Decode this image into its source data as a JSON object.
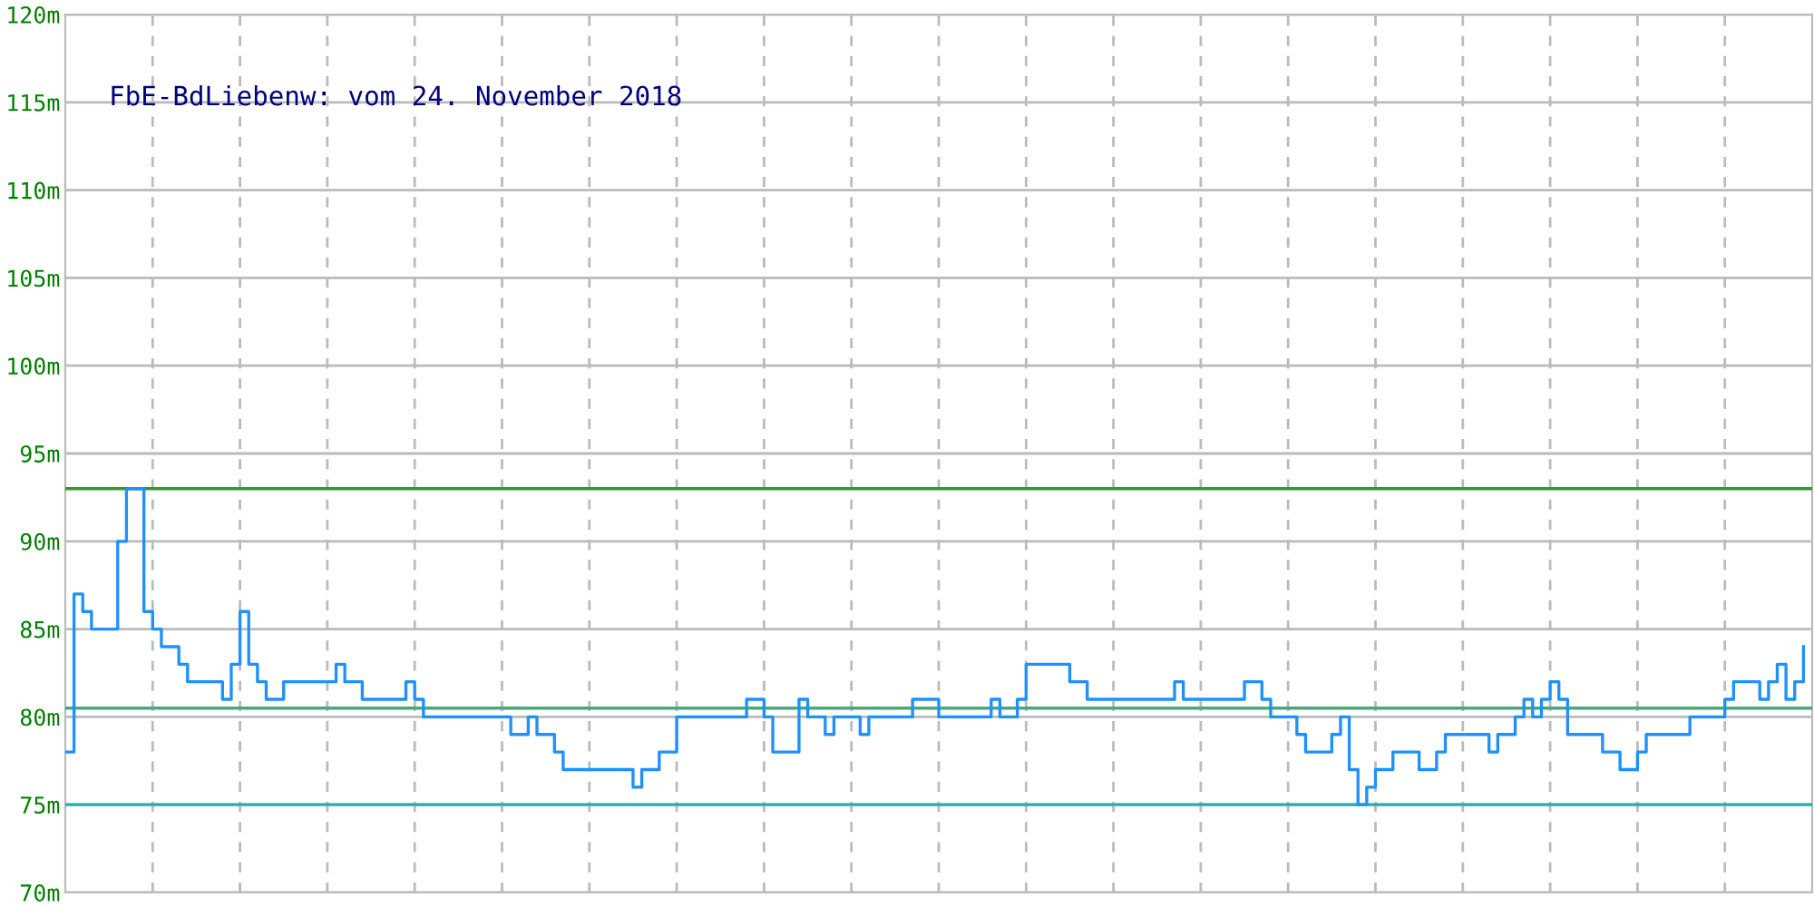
{
  "chart_data": {
    "type": "step",
    "title": "FbE-BdLiebenw: vom 24. November 2018",
    "categories": [
      null,
      null,
      null,
      null,
      null,
      null,
      null,
      null,
      null,
      null,
      null,
      null,
      null,
      null,
      null,
      null,
      null,
      null,
      null,
      null,
      null,
      null,
      null,
      null,
      null,
      null,
      null,
      null,
      null,
      null,
      null,
      null,
      null,
      null,
      null,
      null,
      null,
      null,
      null,
      null,
      null,
      null,
      null,
      null,
      null,
      null,
      null,
      null,
      null,
      null,
      null,
      null,
      null,
      null,
      null,
      null,
      null,
      null,
      null,
      null,
      null,
      null,
      null,
      null,
      null,
      null,
      null,
      null,
      null,
      null,
      null,
      null,
      null,
      null,
      null,
      null,
      null,
      null,
      null,
      null,
      null,
      null,
      null,
      null,
      null,
      null,
      null,
      null,
      null,
      null,
      null,
      null,
      null,
      null,
      null,
      null,
      null,
      null,
      null,
      null,
      null,
      null,
      null,
      null,
      null,
      null,
      null,
      null,
      null,
      null,
      null,
      null,
      null,
      null,
      null,
      null,
      null,
      null,
      null,
      null,
      null,
      null,
      null,
      null,
      null,
      null,
      null,
      null,
      null,
      null,
      null,
      null,
      null,
      null,
      null,
      null,
      null,
      null,
      null,
      null,
      null,
      null,
      null,
      null,
      null,
      null,
      null,
      null,
      null,
      null,
      null,
      null,
      null,
      null,
      null,
      null,
      null,
      null,
      null,
      null,
      null,
      null,
      null,
      null,
      null,
      null,
      null,
      null,
      null,
      null,
      null,
      null,
      null,
      null,
      null,
      null,
      null,
      null,
      null,
      null,
      null,
      null,
      null,
      null,
      null,
      null,
      null,
      null,
      null,
      null,
      null,
      null,
      null,
      null,
      null,
      null,
      null,
      null,
      null,
      null
    ],
    "series": [
      {
        "color": "#1e90ff",
        "values": [
          78,
          87,
          86,
          85,
          85,
          85,
          90,
          93,
          93,
          86,
          85,
          84,
          84,
          83,
          82,
          82,
          82,
          82,
          81,
          83,
          86,
          83,
          82,
          81,
          81,
          82,
          82,
          82,
          82,
          82,
          82,
          83,
          82,
          82,
          81,
          81,
          81,
          81,
          81,
          82,
          81,
          80,
          80,
          80,
          80,
          80,
          80,
          80,
          80,
          80,
          80,
          79,
          79,
          80,
          79,
          79,
          78,
          77,
          77,
          77,
          77,
          77,
          77,
          77,
          77,
          76,
          77,
          77,
          78,
          78,
          80,
          80,
          80,
          80,
          80,
          80,
          80,
          80,
          81,
          81,
          80,
          78,
          78,
          78,
          81,
          80,
          80,
          79,
          80,
          80,
          80,
          79,
          80,
          80,
          80,
          80,
          80,
          81,
          81,
          81,
          80,
          80,
          80,
          80,
          80,
          80,
          81,
          80,
          80,
          81,
          83,
          83,
          83,
          83,
          83,
          82,
          82,
          81,
          81,
          81,
          81,
          81,
          81,
          81,
          81,
          81,
          81,
          82,
          81,
          81,
          81,
          81,
          81,
          81,
          81,
          82,
          82,
          81,
          80,
          80,
          80,
          79,
          78,
          78,
          78,
          79,
          80,
          77,
          75,
          76,
          77,
          77,
          78,
          78,
          78,
          77,
          77,
          78,
          79,
          79,
          79,
          79,
          79,
          78,
          79,
          79,
          80,
          81,
          80,
          81,
          82,
          81,
          79,
          79,
          79,
          79,
          78,
          78,
          77,
          77,
          78,
          79,
          79,
          79,
          79,
          79,
          80,
          80,
          80,
          80,
          81,
          82,
          82,
          82,
          81,
          82,
          83,
          81,
          82,
          84
        ]
      }
    ],
    "ylim": [
      70,
      120
    ],
    "yticks": [
      {
        "value": 70,
        "label": "70m"
      },
      {
        "value": 75,
        "label": "75m"
      },
      {
        "value": 80,
        "label": "80m"
      },
      {
        "value": 85,
        "label": "85m"
      },
      {
        "value": 90,
        "label": "90m"
      },
      {
        "value": 95,
        "label": "95m"
      },
      {
        "value": 100,
        "label": "100m"
      },
      {
        "value": 105,
        "label": "105m"
      },
      {
        "value": 110,
        "label": "110m"
      },
      {
        "value": 115,
        "label": "115m"
      },
      {
        "value": 120,
        "label": "120m"
      }
    ],
    "ref_lines": [
      {
        "axis": "y",
        "value": 93,
        "color": "#2e9a2e"
      },
      {
        "axis": "y",
        "value": 80.5,
        "color": "#4aa87a"
      },
      {
        "axis": "y",
        "value": 75,
        "color": "#20b2aa"
      }
    ],
    "grid": true,
    "marker": "none",
    "line_style": "solid"
  }
}
